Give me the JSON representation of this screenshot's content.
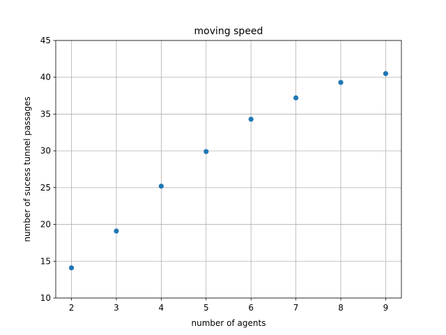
{
  "chart_data": {
    "type": "scatter",
    "title": "moving speed",
    "xlabel": "number of agents",
    "ylabel": "number of sucess tunnel passages",
    "x": [
      2,
      3,
      4,
      5,
      6,
      7,
      8,
      9
    ],
    "series": [
      {
        "values": [
          14.1,
          19.1,
          25.2,
          29.9,
          34.3,
          37.2,
          39.3,
          40.5
        ]
      }
    ],
    "xlim": [
      1.65,
      9.35
    ],
    "ylim": [
      10,
      45
    ],
    "xticks": [
      2,
      3,
      4,
      5,
      6,
      7,
      8,
      9
    ],
    "yticks": [
      10,
      15,
      20,
      25,
      30,
      35,
      40,
      45
    ],
    "grid": true,
    "marker_color": "#1f77b4"
  }
}
